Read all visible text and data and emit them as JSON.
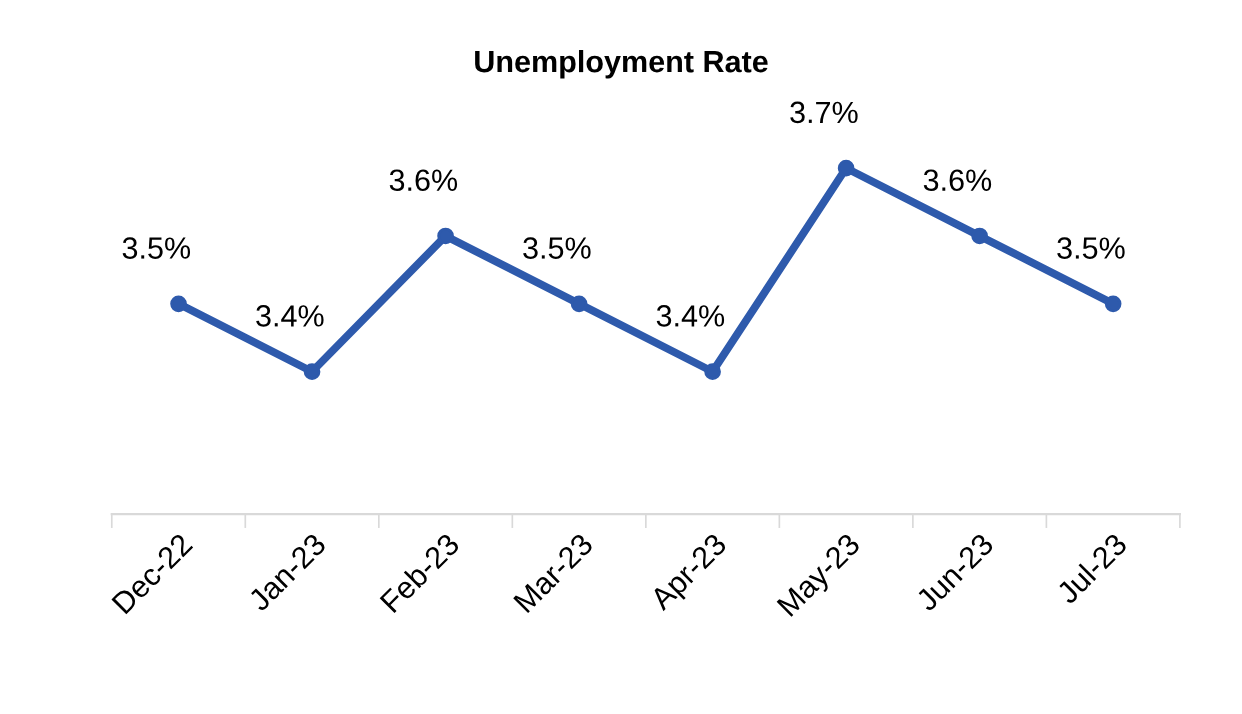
{
  "chart_data": {
    "type": "line",
    "title": "Unemployment Rate",
    "categories": [
      "Dec-22",
      "Jan-23",
      "Feb-23",
      "Mar-23",
      "Apr-23",
      "May-23",
      "Jun-23",
      "Jul-23"
    ],
    "series": [
      {
        "color": "#2e5aac",
        "values": [
          3.5,
          3.4,
          3.6,
          3.5,
          3.4,
          3.7,
          3.6,
          3.5
        ],
        "value_labels": [
          "3.5%",
          "3.4%",
          "3.6%",
          "3.5%",
          "3.4%",
          "3.7%",
          "3.6%",
          "3.5%"
        ]
      }
    ],
    "marker": "circle",
    "line_style": "solid",
    "grid": false,
    "legend": false,
    "tick_labels": "x"
  }
}
